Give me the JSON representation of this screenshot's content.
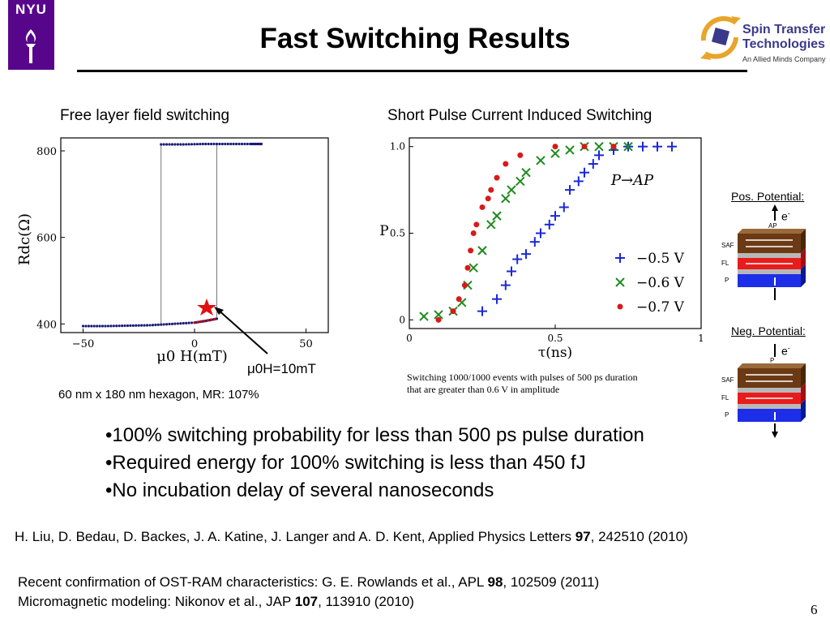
{
  "header": {
    "nyu_logo_text": "NYU",
    "title": "Fast Switching Results",
    "company_logo": {
      "line1": "Spin Transfer",
      "line2": "Technologies",
      "tagline": "An Allied Minds Company"
    }
  },
  "left_panel": {
    "caption": "Free layer field switching",
    "annotation": "μ0H=10mT",
    "footnote": "60 nm x 180 nm hexagon, MR: 107%",
    "chart_data": {
      "type": "line",
      "xlabel": "μ0 H(mT)",
      "ylabel": "Rdc(Ω)",
      "xlim": [
        -60,
        60
      ],
      "ylim": [
        380,
        830
      ],
      "xticks": [
        "−50",
        "0",
        "50"
      ],
      "yticks": [
        "400",
        "600",
        "800"
      ],
      "series": [
        {
          "branch": "high-resistance",
          "x": [
            -15,
            -5,
            5,
            15,
            25,
            30
          ],
          "y": [
            815,
            815,
            816,
            816,
            816,
            816
          ]
        },
        {
          "branch": "low-resistance",
          "x": [
            -50,
            -40,
            -30,
            -20,
            -10,
            0,
            5,
            10
          ],
          "y": [
            395,
            395,
            396,
            397,
            400,
            403,
            407,
            412
          ]
        }
      ],
      "switch_field_up": 10,
      "switch_field_down": -15
    }
  },
  "right_panel": {
    "caption": "Short Pulse Current Induced Switching",
    "note": "Switching 1000/1000 events with pulses of 500 ps duration that are greater than 0.6 V in amplitude",
    "chart_data": {
      "type": "scatter",
      "title": "P→AP",
      "xlabel": "τ(ns)",
      "ylabel": "P",
      "xlim": [
        0,
        1
      ],
      "ylim": [
        -0.05,
        1.05
      ],
      "xticks": [
        "0",
        "0.5",
        "1"
      ],
      "yticks": [
        "0",
        "0.5",
        "1.0"
      ],
      "series": [
        {
          "name": "−0.5 V",
          "color": "#1a28d8",
          "marker": "plus",
          "x": [
            0.25,
            0.3,
            0.33,
            0.35,
            0.37,
            0.4,
            0.43,
            0.45,
            0.48,
            0.5,
            0.53,
            0.55,
            0.58,
            0.6,
            0.63,
            0.65,
            0.7,
            0.75,
            0.8,
            0.85,
            0.9
          ],
          "y": [
            0.05,
            0.12,
            0.2,
            0.28,
            0.35,
            0.38,
            0.45,
            0.5,
            0.55,
            0.6,
            0.65,
            0.75,
            0.8,
            0.85,
            0.9,
            0.95,
            0.98,
            1.0,
            1.0,
            1.0,
            1.0
          ]
        },
        {
          "name": "−0.6 V",
          "color": "#1d8a1d",
          "marker": "x",
          "x": [
            0.05,
            0.1,
            0.15,
            0.18,
            0.2,
            0.22,
            0.25,
            0.28,
            0.3,
            0.33,
            0.35,
            0.38,
            0.4,
            0.45,
            0.5,
            0.55,
            0.6,
            0.65,
            0.7,
            0.75
          ],
          "y": [
            0.02,
            0.03,
            0.05,
            0.1,
            0.2,
            0.3,
            0.4,
            0.55,
            0.6,
            0.7,
            0.75,
            0.8,
            0.85,
            0.92,
            0.96,
            0.98,
            1.0,
            1.0,
            1.0,
            1.0
          ]
        },
        {
          "name": "−0.7 V",
          "color": "#d81a1a",
          "marker": "dot",
          "x": [
            0.1,
            0.15,
            0.17,
            0.19,
            0.2,
            0.21,
            0.22,
            0.23,
            0.25,
            0.27,
            0.28,
            0.3,
            0.33,
            0.38,
            0.5,
            0.6,
            0.7
          ],
          "y": [
            0.0,
            0.05,
            0.12,
            0.2,
            0.3,
            0.4,
            0.5,
            0.55,
            0.65,
            0.7,
            0.75,
            0.82,
            0.9,
            0.95,
            1.0,
            1.0,
            1.0
          ]
        }
      ]
    }
  },
  "diagrams": {
    "pos": {
      "title": "Pos. Potential:",
      "electron": "e",
      "electron_sup": "-",
      "top_label": "AP",
      "layers": [
        "SAF",
        "FL",
        "P"
      ]
    },
    "neg": {
      "title": "Neg. Potential:",
      "electron": "e",
      "electron_sup": "-",
      "top_label": "P",
      "layers": [
        "SAF",
        "FL",
        "P"
      ]
    }
  },
  "bullets": [
    "•100% switching probability for less than 500 ps pulse duration",
    "•Required energy for 100% switching is less than 450 fJ",
    "•No incubation delay of several nanoseconds"
  ],
  "references": {
    "main_pre": "H. Liu, D. Bedau, D. Backes, J. A. Katine, J. Langer and A. D. Kent, Applied Physics Letters ",
    "main_vol": "97",
    "main_post": ", 242510 (2010)",
    "line2_pre": "Recent confirmation of OST-RAM characteristics: G. E. Rowlands et al., APL ",
    "line2_vol": "98",
    "line2_post": ", 102509 (2011)",
    "line3_pre": "Micromagnetic modeling: Nikonov et al., JAP ",
    "line3_vol": "107",
    "line3_post": ", 113910 (2010)"
  },
  "page_number": "6"
}
